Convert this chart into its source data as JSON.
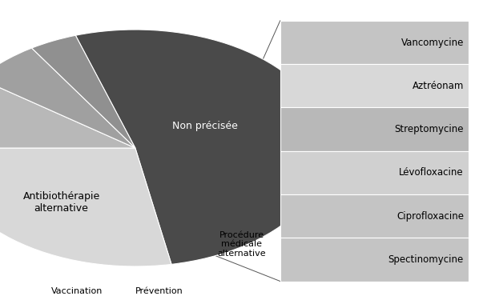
{
  "pie_labels": [
    "Non précisée",
    "Antibiothérapie\nalternative",
    "Procédure\nmédicale\nalternative",
    "Prévention",
    "Vaccination"
  ],
  "pie_values": [
    52,
    28,
    10,
    6,
    4
  ],
  "pie_colors": [
    "#4a4a4a",
    "#d8d8d8",
    "#b8b8b8",
    "#a0a0a0",
    "#909090"
  ],
  "pie_label_fontsize": 9,
  "sub_labels": [
    "Vancomycine",
    "Aztréonam",
    "Streptomycine",
    "Lévofloxacine",
    "Ciprofloxacine",
    "Spectinomycine"
  ],
  "sub_bar_colors": [
    "#c0c0c0",
    "#d4d4d4",
    "#b4b4b4",
    "#cccccc",
    "#c4c4c4",
    "#c8c8c8"
  ],
  "background_color": "#ffffff",
  "figsize": [
    6.03,
    3.7
  ],
  "dpi": 100
}
